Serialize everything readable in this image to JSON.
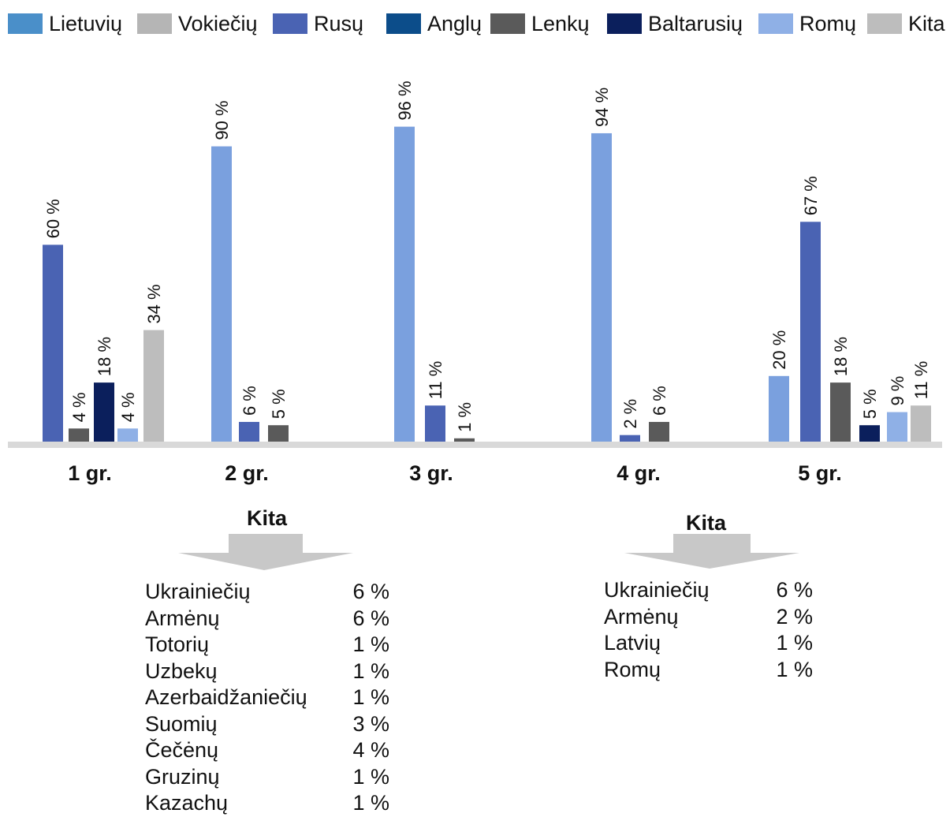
{
  "chart_data": {
    "type": "bar",
    "title": "",
    "xlabel": "",
    "ylabel": "",
    "ylim": [
      0,
      100
    ],
    "legend_position": "top",
    "legend": [
      {
        "name": "Lietuvių",
        "color": "#4a8fc9"
      },
      {
        "name": "Vokiečių",
        "color": "#b5b5b5"
      },
      {
        "name": "Rusų",
        "color": "#4a63b3"
      },
      {
        "name": "Anglų",
        "color": "#0c4d8a"
      },
      {
        "name": "Lenkų",
        "color": "#5a5a5a"
      },
      {
        "name": "Baltarusių",
        "color": "#0b1f5c"
      },
      {
        "name": "Romų",
        "color": "#8fb0e6"
      },
      {
        "name": "Kita",
        "color": "#bdbdbd"
      }
    ],
    "groups": [
      {
        "label": "1 gr.",
        "bars": [
          {
            "series": "Rusų",
            "value": 60,
            "label": "60 %",
            "color": "#4a63b3"
          },
          {
            "series": "Lenkų",
            "value": 4,
            "label": "4 %",
            "color": "#5a5a5a"
          },
          {
            "series": "Baltarusių",
            "value": 18,
            "label": "18 %",
            "color": "#0b1f5c"
          },
          {
            "series": "Romų",
            "value": 4,
            "label": "4 %",
            "color": "#8fb0e6"
          },
          {
            "series": "Kita",
            "value": 34,
            "label": "34 %",
            "color": "#bdbdbd"
          }
        ]
      },
      {
        "label": "2 gr.",
        "bars": [
          {
            "series": "Lietuvių",
            "value": 90,
            "label": "90 %",
            "color": "#7aa0de"
          },
          {
            "series": "Rusų",
            "value": 6,
            "label": "6 %",
            "color": "#4a63b3"
          },
          {
            "series": "Lenkų",
            "value": 5,
            "label": "5 %",
            "color": "#5a5a5a"
          }
        ]
      },
      {
        "label": "3 gr.",
        "bars": [
          {
            "series": "Lietuvių",
            "value": 96,
            "label": "96 %",
            "color": "#7aa0de"
          },
          {
            "series": "Rusų",
            "value": 11,
            "label": "11 %",
            "color": "#4a63b3"
          },
          {
            "series": "Lenkų",
            "value": 1,
            "label": "1 %",
            "color": "#5a5a5a"
          }
        ]
      },
      {
        "label": "4 gr.",
        "bars": [
          {
            "series": "Lietuvių",
            "value": 94,
            "label": "94 %",
            "color": "#7aa0de"
          },
          {
            "series": "Rusų",
            "value": 2,
            "label": "2 %",
            "color": "#4a63b3"
          },
          {
            "series": "Lenkų",
            "value": 6,
            "label": "6 %",
            "color": "#5a5a5a"
          }
        ]
      },
      {
        "label": "5 gr.",
        "bars": [
          {
            "series": "Lietuvių",
            "value": 20,
            "label": "20 %",
            "color": "#7aa0de"
          },
          {
            "series": "Rusų",
            "value": 67,
            "label": "67 %",
            "color": "#4a63b3"
          },
          {
            "series": "Lenkų",
            "value": 18,
            "label": "18 %",
            "color": "#5a5a5a"
          },
          {
            "series": "Baltarusių",
            "value": 5,
            "label": "5 %",
            "color": "#0b1f5c"
          },
          {
            "series": "Romų",
            "value": 9,
            "label": "9 %",
            "color": "#8fb0e6"
          },
          {
            "series": "Kita",
            "value": 11,
            "label": "11 %",
            "color": "#bdbdbd"
          }
        ]
      }
    ]
  },
  "kita_breakdowns": [
    {
      "title": "Kita",
      "items": [
        {
          "name": "Ukrainiečių",
          "value": "6 %"
        },
        {
          "name": "Armėnų",
          "value": "6 %"
        },
        {
          "name": "Totorių",
          "value": "1 %"
        },
        {
          "name": "Uzbekų",
          "value": "1 %"
        },
        {
          "name": "Azerbaidžaniečių",
          "value": "1 %"
        },
        {
          "name": "Suomių",
          "value": "3 %"
        },
        {
          "name": "Čečėnų",
          "value": "4 %"
        },
        {
          "name": "Gruzinų",
          "value": "1 %"
        },
        {
          "name": "Kazachų",
          "value": "1 %"
        }
      ]
    },
    {
      "title": "Kita",
      "items": [
        {
          "name": "Ukrainiečių",
          "value": "6 %"
        },
        {
          "name": "Armėnų",
          "value": "2 %"
        },
        {
          "name": "Latvių",
          "value": "1 %"
        },
        {
          "name": "Romų",
          "value": "1 %"
        }
      ]
    }
  ],
  "colors": {
    "axis": "#d9d9d9",
    "arrow": "#c8c8c8"
  }
}
